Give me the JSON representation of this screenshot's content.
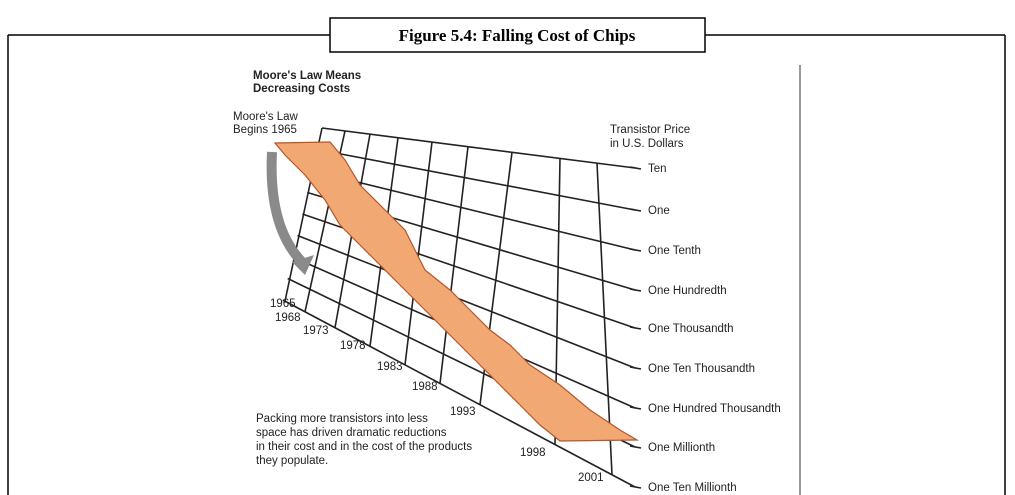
{
  "figure": {
    "caption": "Figure 5.4: Falling Cost of Chips"
  },
  "diagram": {
    "title": [
      "Moore's Law Means",
      "Decreasing Costs"
    ],
    "start_label": [
      "Moore's Law",
      "Begins 1965"
    ],
    "axis_label": [
      "Transistor Price",
      "in U.S. Dollars"
    ],
    "price_levels": [
      "Ten",
      "One",
      "One Tenth",
      "One Hundredth",
      "One Thousandth",
      "One Ten Thousandth",
      "One Hundred Thousandth",
      "One Millionth",
      "One Ten Millionth"
    ],
    "years": [
      "1965",
      "1968",
      "1973",
      "1978",
      "1983",
      "1988",
      "1993",
      "1998",
      "2001"
    ],
    "note": [
      "Packing more transistors into less",
      "space has driven dramatic reductions",
      "in their cost and in the cost of the products",
      "they populate."
    ]
  }
}
